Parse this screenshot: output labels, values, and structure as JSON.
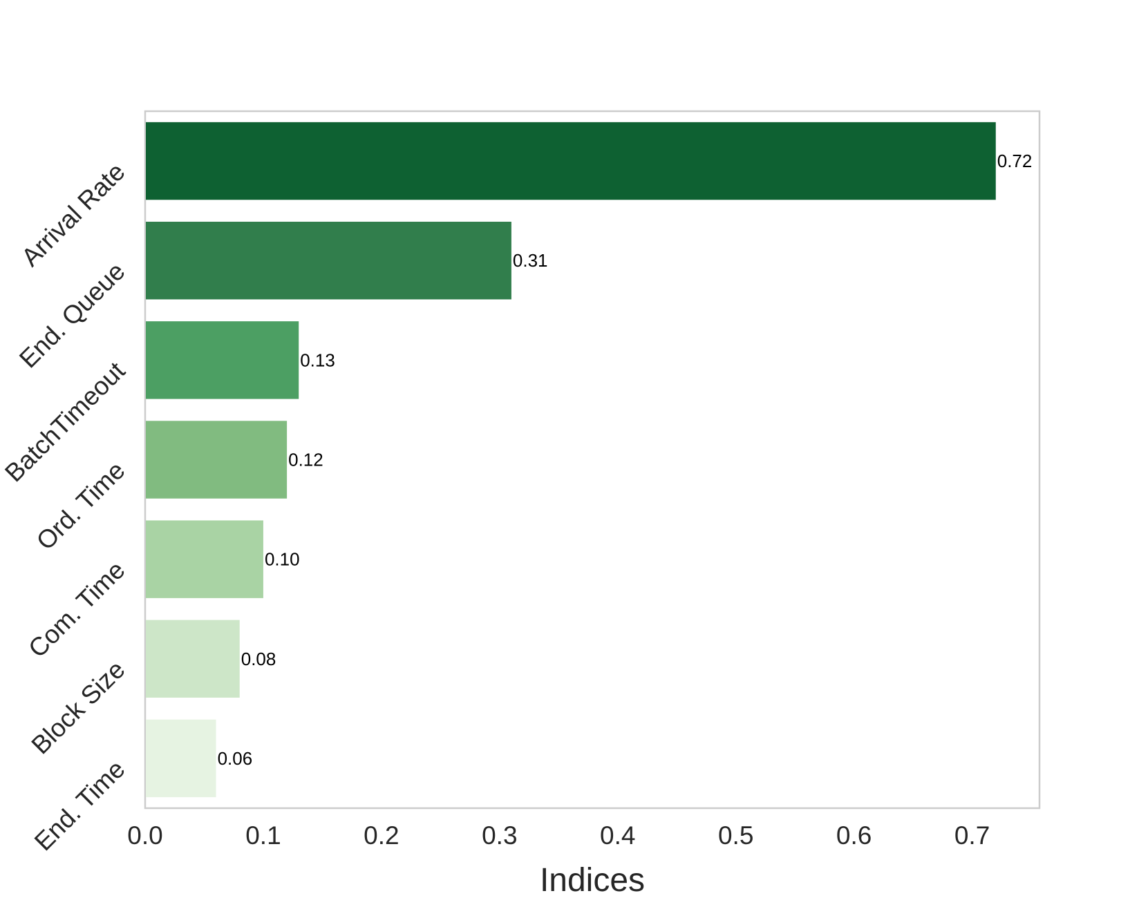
{
  "chart_data": {
    "type": "bar",
    "orientation": "horizontal",
    "categories": [
      "Arrival Rate",
      "End. Queue",
      "BatchTimeout",
      "Ord. Time",
      "Com. Time",
      "Block Size",
      "End. Time"
    ],
    "values": [
      0.72,
      0.31,
      0.13,
      0.12,
      0.1,
      0.08,
      0.06
    ],
    "value_labels": [
      "0.72",
      "0.31",
      "0.13",
      "0.12",
      "0.10",
      "0.08",
      "0.06"
    ],
    "colors": [
      "#0e6132",
      "#317e4c",
      "#4c9f63",
      "#81bb80",
      "#a9d3a4",
      "#cde6c8",
      "#e6f3e2"
    ],
    "xlabel": "Indices",
    "ylabel": "",
    "title": "",
    "xlim": [
      0,
      0.757
    ],
    "xticks": [
      0.0,
      0.1,
      0.2,
      0.3,
      0.4,
      0.5,
      0.6,
      0.7
    ],
    "xtick_labels": [
      "0.0",
      "0.1",
      "0.2",
      "0.3",
      "0.4",
      "0.5",
      "0.6",
      "0.7"
    ],
    "grid": false,
    "frame_color": "#cccccc"
  }
}
